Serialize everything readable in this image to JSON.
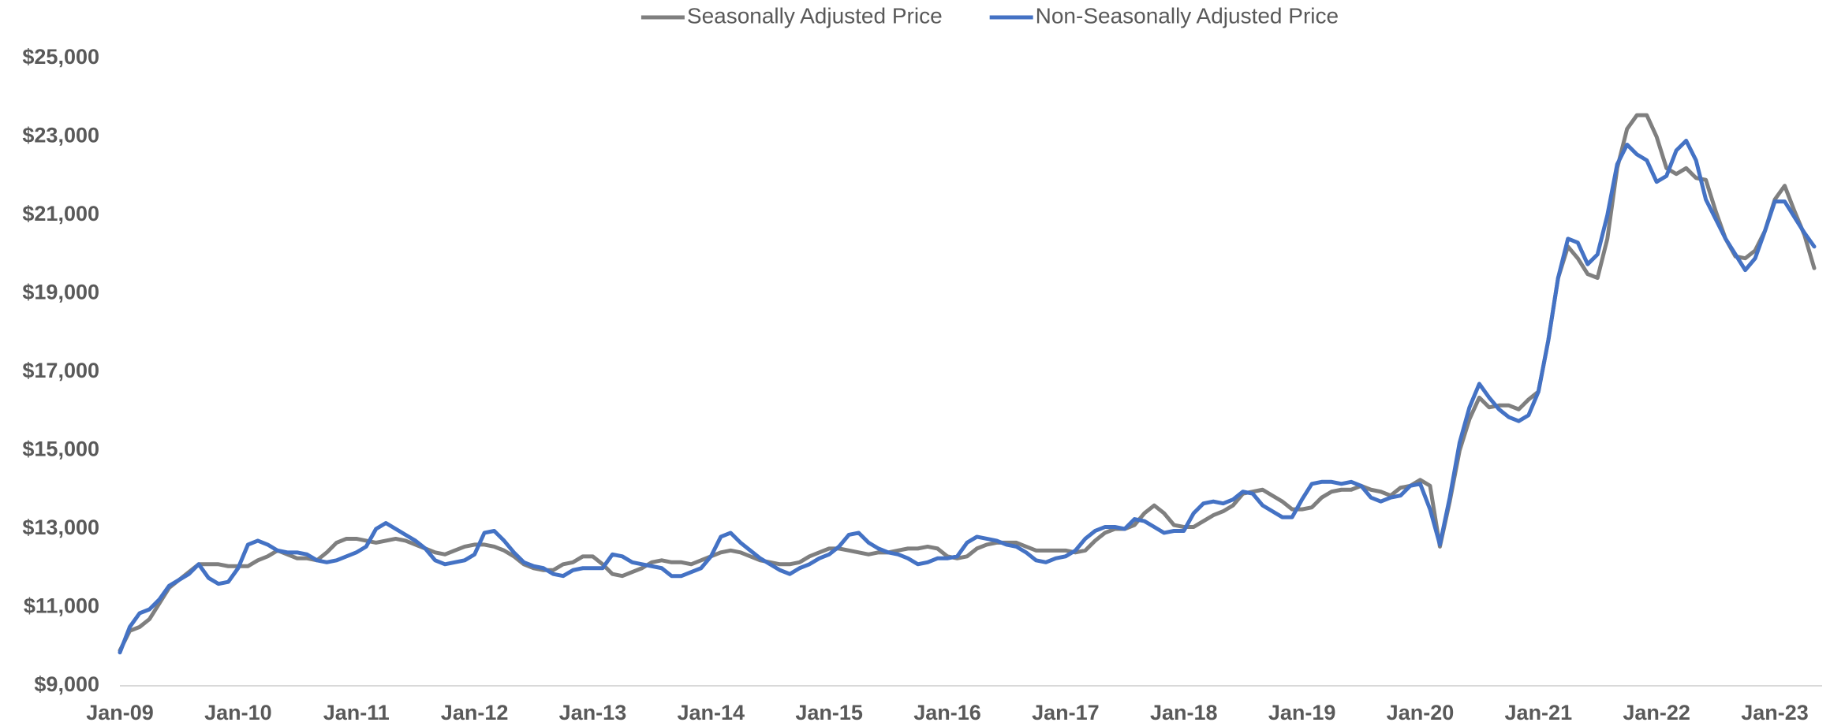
{
  "chart_data": {
    "type": "line",
    "legend": "top",
    "categories": [
      "Jan-09",
      null,
      null,
      null,
      null,
      null,
      null,
      null,
      null,
      null,
      null,
      null,
      "Jan-10",
      null,
      null,
      null,
      null,
      null,
      null,
      null,
      null,
      null,
      null,
      null,
      "Jan-11",
      null,
      null,
      null,
      null,
      null,
      null,
      null,
      null,
      null,
      null,
      null,
      "Jan-12",
      null,
      null,
      null,
      null,
      null,
      null,
      null,
      null,
      null,
      null,
      null,
      "Jan-13",
      null,
      null,
      null,
      null,
      null,
      null,
      null,
      null,
      null,
      null,
      null,
      "Jan-14",
      null,
      null,
      null,
      null,
      null,
      null,
      null,
      null,
      null,
      null,
      null,
      "Jan-15",
      null,
      null,
      null,
      null,
      null,
      null,
      null,
      null,
      null,
      null,
      null,
      "Jan-16",
      null,
      null,
      null,
      null,
      null,
      null,
      null,
      null,
      null,
      null,
      null,
      "Jan-17",
      null,
      null,
      null,
      null,
      null,
      null,
      null,
      null,
      null,
      null,
      null,
      "Jan-18",
      null,
      null,
      null,
      null,
      null,
      null,
      null,
      null,
      null,
      null,
      null,
      "Jan-19",
      null,
      null,
      null,
      null,
      null,
      null,
      null,
      null,
      null,
      null,
      null,
      "Jan-20",
      null,
      null,
      null,
      null,
      null,
      null,
      null,
      null,
      null,
      null,
      null,
      "Jan-21",
      null,
      null,
      null,
      null,
      null,
      null,
      null,
      null,
      null,
      null,
      null,
      "Jan-22",
      null,
      null,
      null,
      null,
      null,
      null,
      null,
      null,
      null,
      null,
      null,
      "Jan-23",
      null,
      null,
      null,
      null
    ],
    "series": [
      {
        "name": "Seasonally Adjusted Price",
        "color": "#7f7f7f",
        "values": [
          9900,
          10400,
          10500,
          10700,
          11100,
          11500,
          11700,
          11900,
          12100,
          12100,
          12100,
          12050,
          12050,
          12050,
          12200,
          12300,
          12450,
          12350,
          12250,
          12250,
          12200,
          12400,
          12650,
          12750,
          12750,
          12700,
          12650,
          12700,
          12750,
          12700,
          12600,
          12500,
          12400,
          12350,
          12450,
          12550,
          12600,
          12600,
          12550,
          12450,
          12300,
          12100,
          12000,
          11950,
          11950,
          12100,
          12150,
          12300,
          12300,
          12100,
          11850,
          11800,
          11900,
          12000,
          12150,
          12200,
          12150,
          12150,
          12100,
          12200,
          12300,
          12400,
          12450,
          12400,
          12300,
          12200,
          12150,
          12100,
          12100,
          12150,
          12300,
          12400,
          12500,
          12500,
          12450,
          12400,
          12350,
          12400,
          12400,
          12450,
          12500,
          12500,
          12550,
          12500,
          12300,
          12250,
          12300,
          12500,
          12600,
          12650,
          12650,
          12650,
          12550,
          12450,
          12450,
          12450,
          12450,
          12400,
          12450,
          12700,
          12900,
          13000,
          13000,
          13100,
          13400,
          13600,
          13400,
          13100,
          13050,
          13050,
          13200,
          13350,
          13450,
          13600,
          13900,
          13950,
          14000,
          13850,
          13700,
          13500,
          13500,
          13550,
          13800,
          13950,
          14000,
          14000,
          14100,
          14000,
          13950,
          13850,
          14050,
          14100,
          14250,
          14100,
          12550,
          13700,
          15000,
          15800,
          16350,
          16100,
          16150,
          16150,
          16050,
          16300,
          16500,
          17800,
          19400,
          20200,
          19900,
          19500,
          19400,
          20400,
          22200,
          23200,
          23550,
          23550,
          23000,
          22200,
          22050,
          22200,
          21950,
          21900,
          21100,
          20400,
          19950,
          19900,
          20100,
          20600,
          21400,
          21750,
          21100,
          20500,
          19650
        ]
      },
      {
        "name": "Non-Seasonally Adjusted Price",
        "color": "#4472c4",
        "values": [
          9850,
          10500,
          10850,
          10950,
          11200,
          11550,
          11700,
          11850,
          12100,
          11750,
          11600,
          11650,
          12000,
          12600,
          12700,
          12600,
          12450,
          12400,
          12400,
          12350,
          12200,
          12150,
          12200,
          12300,
          12400,
          12550,
          13000,
          13150,
          13000,
          12850,
          12700,
          12500,
          12200,
          12100,
          12150,
          12200,
          12350,
          12900,
          12950,
          12700,
          12400,
          12150,
          12050,
          12000,
          11850,
          11800,
          11950,
          12000,
          12000,
          12000,
          12350,
          12300,
          12150,
          12100,
          12050,
          12000,
          11800,
          11800,
          11900,
          12000,
          12300,
          12800,
          12900,
          12650,
          12450,
          12250,
          12100,
          11950,
          11850,
          12000,
          12100,
          12250,
          12350,
          12550,
          12850,
          12900,
          12650,
          12500,
          12400,
          12350,
          12250,
          12100,
          12150,
          12250,
          12250,
          12300,
          12650,
          12800,
          12750,
          12700,
          12600,
          12550,
          12400,
          12200,
          12150,
          12250,
          12300,
          12450,
          12750,
          12950,
          13050,
          13050,
          13000,
          13250,
          13200,
          13050,
          12900,
          12950,
          12950,
          13400,
          13650,
          13700,
          13650,
          13750,
          13950,
          13900,
          13600,
          13450,
          13300,
          13300,
          13750,
          14150,
          14200,
          14200,
          14150,
          14200,
          14100,
          13800,
          13700,
          13800,
          13850,
          14100,
          14150,
          13500,
          12600,
          13800,
          15200,
          16100,
          16700,
          16350,
          16050,
          15850,
          15750,
          15900,
          16500,
          17800,
          19400,
          20400,
          20300,
          19750,
          20000,
          21000,
          22300,
          22800,
          22550,
          22400,
          21850,
          22000,
          22650,
          22900,
          22400,
          21400,
          20900,
          20400,
          20000,
          19600,
          19900,
          20600,
          21350,
          21350,
          20950,
          20550,
          20200
        ]
      }
    ],
    "ylim": [
      9000,
      25000
    ],
    "yticks": [
      {
        "value": 9000,
        "label": "$9,000"
      },
      {
        "value": 11000,
        "label": "$11,000"
      },
      {
        "value": 13000,
        "label": "$13,000"
      },
      {
        "value": 15000,
        "label": "$15,000"
      },
      {
        "value": 17000,
        "label": "$17,000"
      },
      {
        "value": 19000,
        "label": "$19,000"
      },
      {
        "value": 21000,
        "label": "$21,000"
      },
      {
        "value": 23000,
        "label": "$23,000"
      },
      {
        "value": 25000,
        "label": "$25,000"
      }
    ]
  }
}
